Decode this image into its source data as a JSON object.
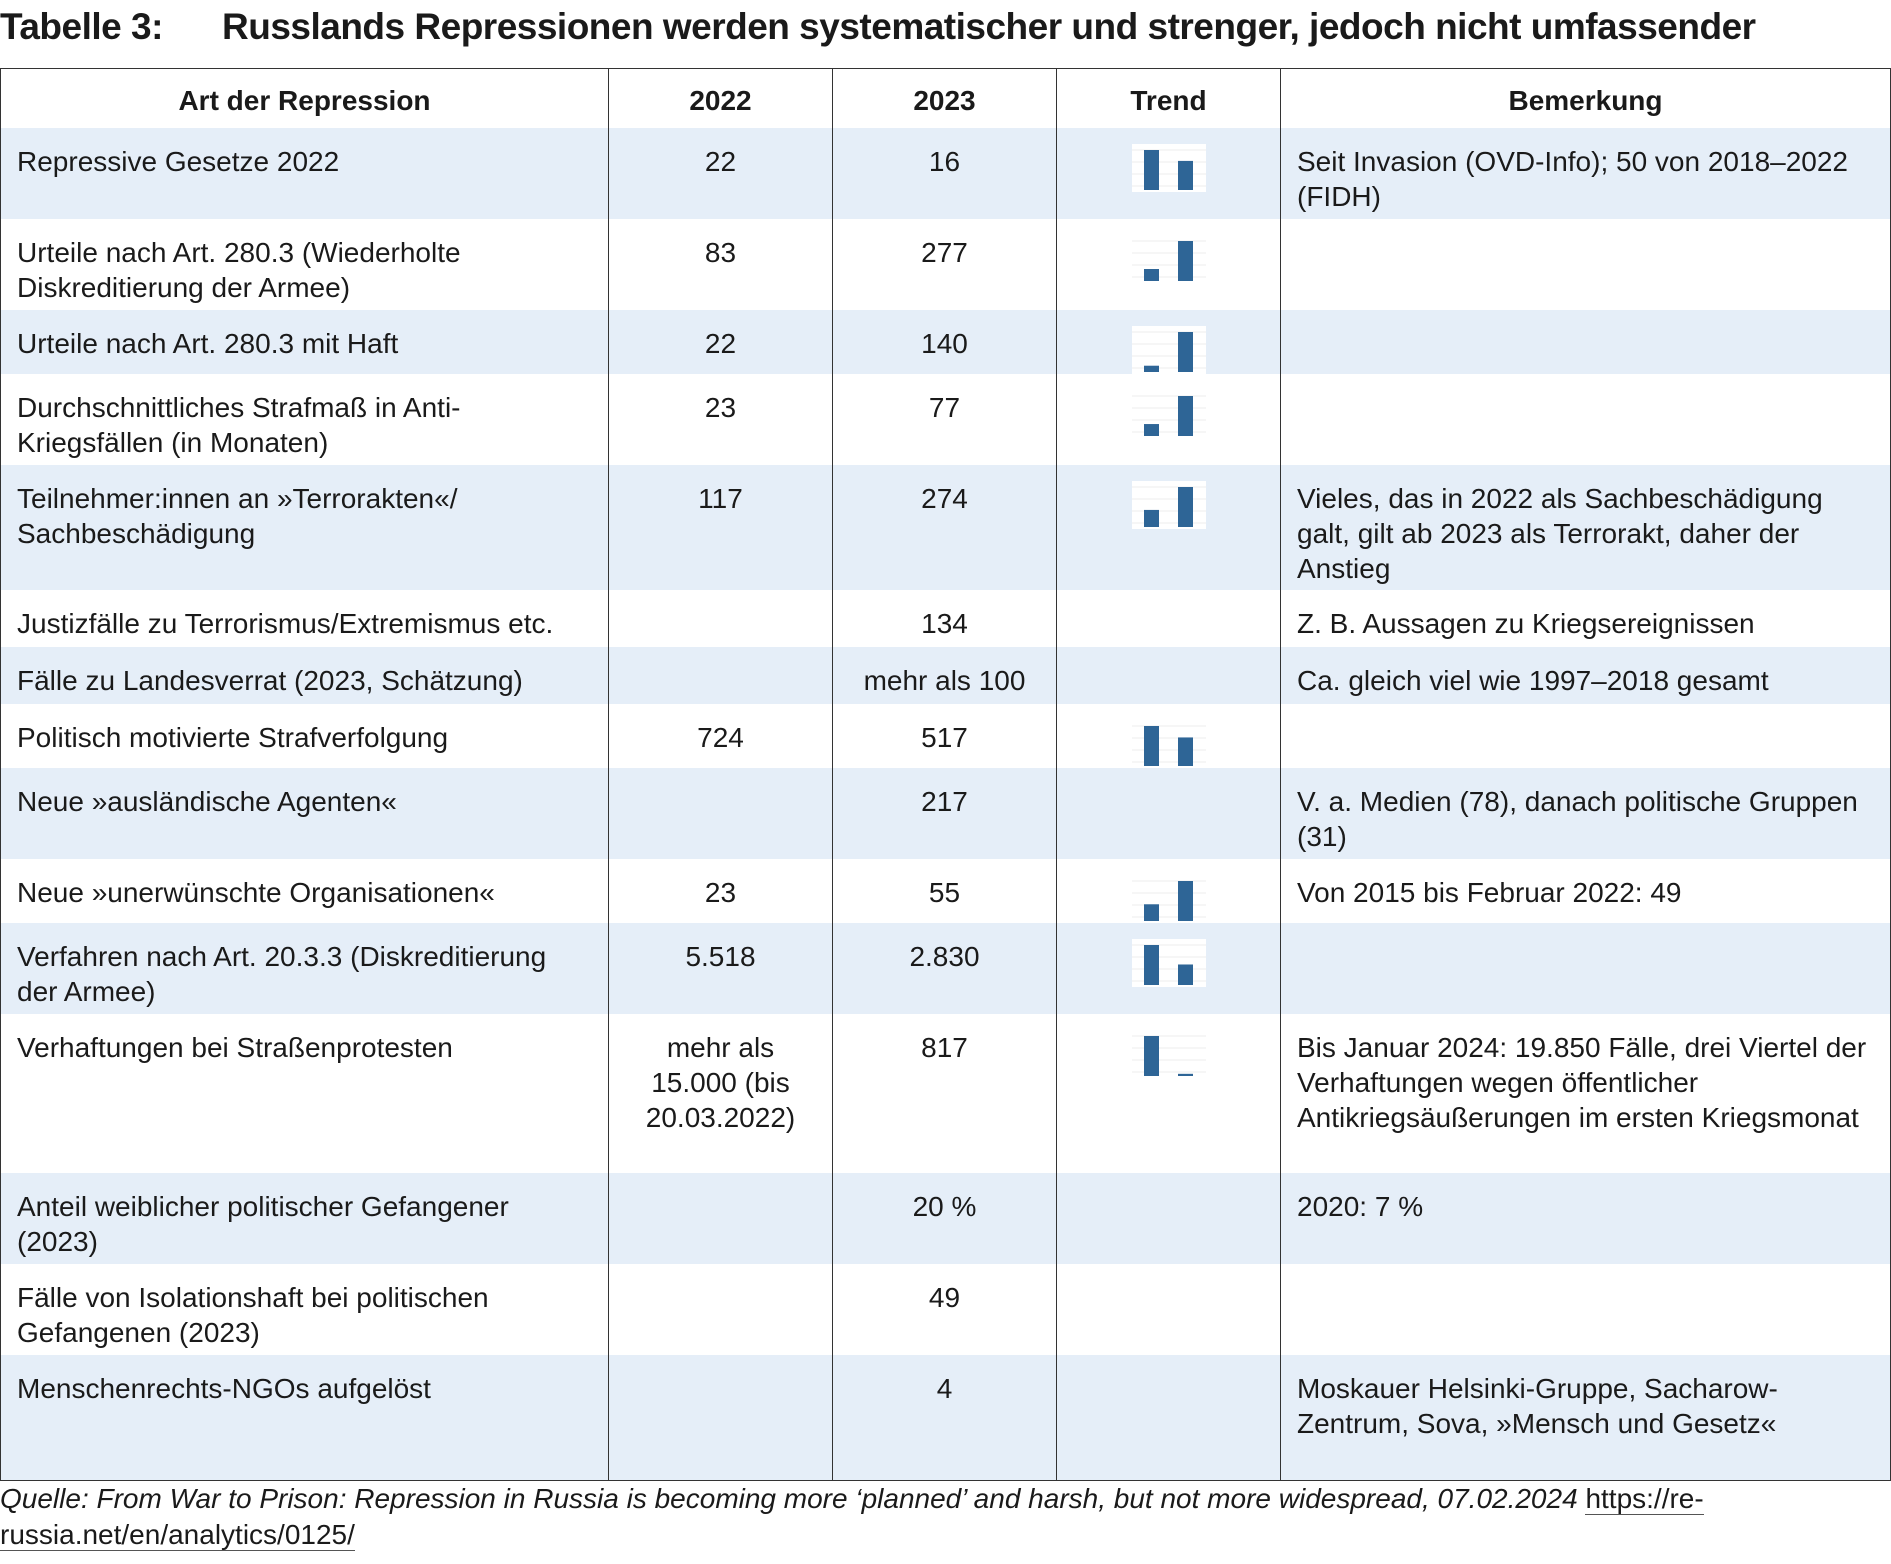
{
  "title": {
    "number": "Tabelle 3:",
    "text": "Russlands Repressionen werden systematischer und strenger, jedoch nicht umfassender"
  },
  "table": {
    "headers": [
      "Art der Repression",
      "2022",
      "2023",
      "Trend",
      "Bemerkung"
    ],
    "rows": [
      {
        "art": "Repressive Gesetze 2022",
        "y2022": "22",
        "y2023": "16",
        "trend": [
          22,
          16
        ],
        "note": "Seit Invasion (OVD-Info); 50 von 2018–2022 (FIDH)"
      },
      {
        "art": "Urteile nach Art. 280.3 (Wiederholte Diskreditierung der Armee)",
        "y2022": "83",
        "y2023": "277",
        "trend": [
          83,
          277
        ],
        "note": ""
      },
      {
        "art": "Urteile nach Art. 280.3 mit Haft",
        "y2022": "22",
        "y2023": "140",
        "trend": [
          22,
          140
        ],
        "note": ""
      },
      {
        "art": "Durchschnittliches Strafmaß in Anti-Kriegsfällen (in Monaten)",
        "y2022": "23",
        "y2023": "77",
        "trend": [
          23,
          77
        ],
        "note": ""
      },
      {
        "art": "Teilnehmer:innen an »Terrorakten«/ Sachbeschädigung",
        "y2022": "117",
        "y2023": "274",
        "trend": [
          117,
          274
        ],
        "note": "Vieles, das in 2022 als Sachbeschädigung galt, gilt ab 2023 als Terrorakt, daher der Anstieg"
      },
      {
        "art": "Justizfälle zu Terrorismus/Extremismus etc.",
        "y2022": "",
        "y2023": "134",
        "trend": null,
        "note": "Z. B. Aussagen zu Kriegsereignissen"
      },
      {
        "art": "Fälle zu Landesverrat (2023, Schätzung)",
        "y2022": "",
        "y2023": "mehr als 100",
        "trend": null,
        "note": "Ca. gleich viel wie 1997–2018 gesamt"
      },
      {
        "art": "Politisch motivierte Strafverfolgung",
        "y2022": "724",
        "y2023": "517",
        "trend": [
          724,
          517
        ],
        "note": ""
      },
      {
        "art": "Neue »ausländische Agenten«",
        "y2022": "",
        "y2023": "217",
        "trend": null,
        "note": "V. a. Medien (78), danach politische Gruppen (31)"
      },
      {
        "art": "Neue »unerwünschte Organisationen«",
        "y2022": "23",
        "y2023": "55",
        "trend": [
          23,
          55
        ],
        "note": "Von 2015 bis Februar 2022: 49"
      },
      {
        "art": "Verfahren nach Art. 20.3.3 (Diskreditierung der Armee)",
        "y2022": "5.518",
        "y2023": "2.830",
        "trend": [
          5518,
          2830
        ],
        "note": ""
      },
      {
        "art": "Verhaftungen bei Straßenprotesten",
        "y2022": "mehr als 15.000 (bis 20.03.2022)",
        "y2023": "817",
        "trend": [
          15000,
          817
        ],
        "note": "Bis Januar 2024: 19.850 Fälle, drei Viertel der Verhaftungen wegen öffentlicher Antikriegsäußerungen im ersten Kriegsmonat"
      },
      {
        "art": "Anteil weiblicher politischer Gefangener (2023)",
        "y2022": "",
        "y2023": "20 %",
        "trend": null,
        "note": "2020: 7 %"
      },
      {
        "art": "Fälle von Isolationshaft bei politischen Gefangenen (2023)",
        "y2022": "",
        "y2023": "49",
        "trend": null,
        "note": ""
      },
      {
        "art": "Menschenrechts-NGOs aufgelöst",
        "y2022": "",
        "y2023": "4",
        "trend": null,
        "note": "Moskauer Helsinki-Gruppe, Sacharow-Zentrum, Sova, »Mensch und Gesetz«"
      }
    ]
  },
  "source": {
    "text": "Quelle: From War to Prison: Repression in Russia is becoming more ‘planned’ and harsh, but not more widespread, 07.02.2024",
    "link": "https://re-russia.net/en/analytics/0125/"
  },
  "colors": {
    "shade": "#e5eef8",
    "bar": "#2e6596",
    "border": "#333333"
  }
}
